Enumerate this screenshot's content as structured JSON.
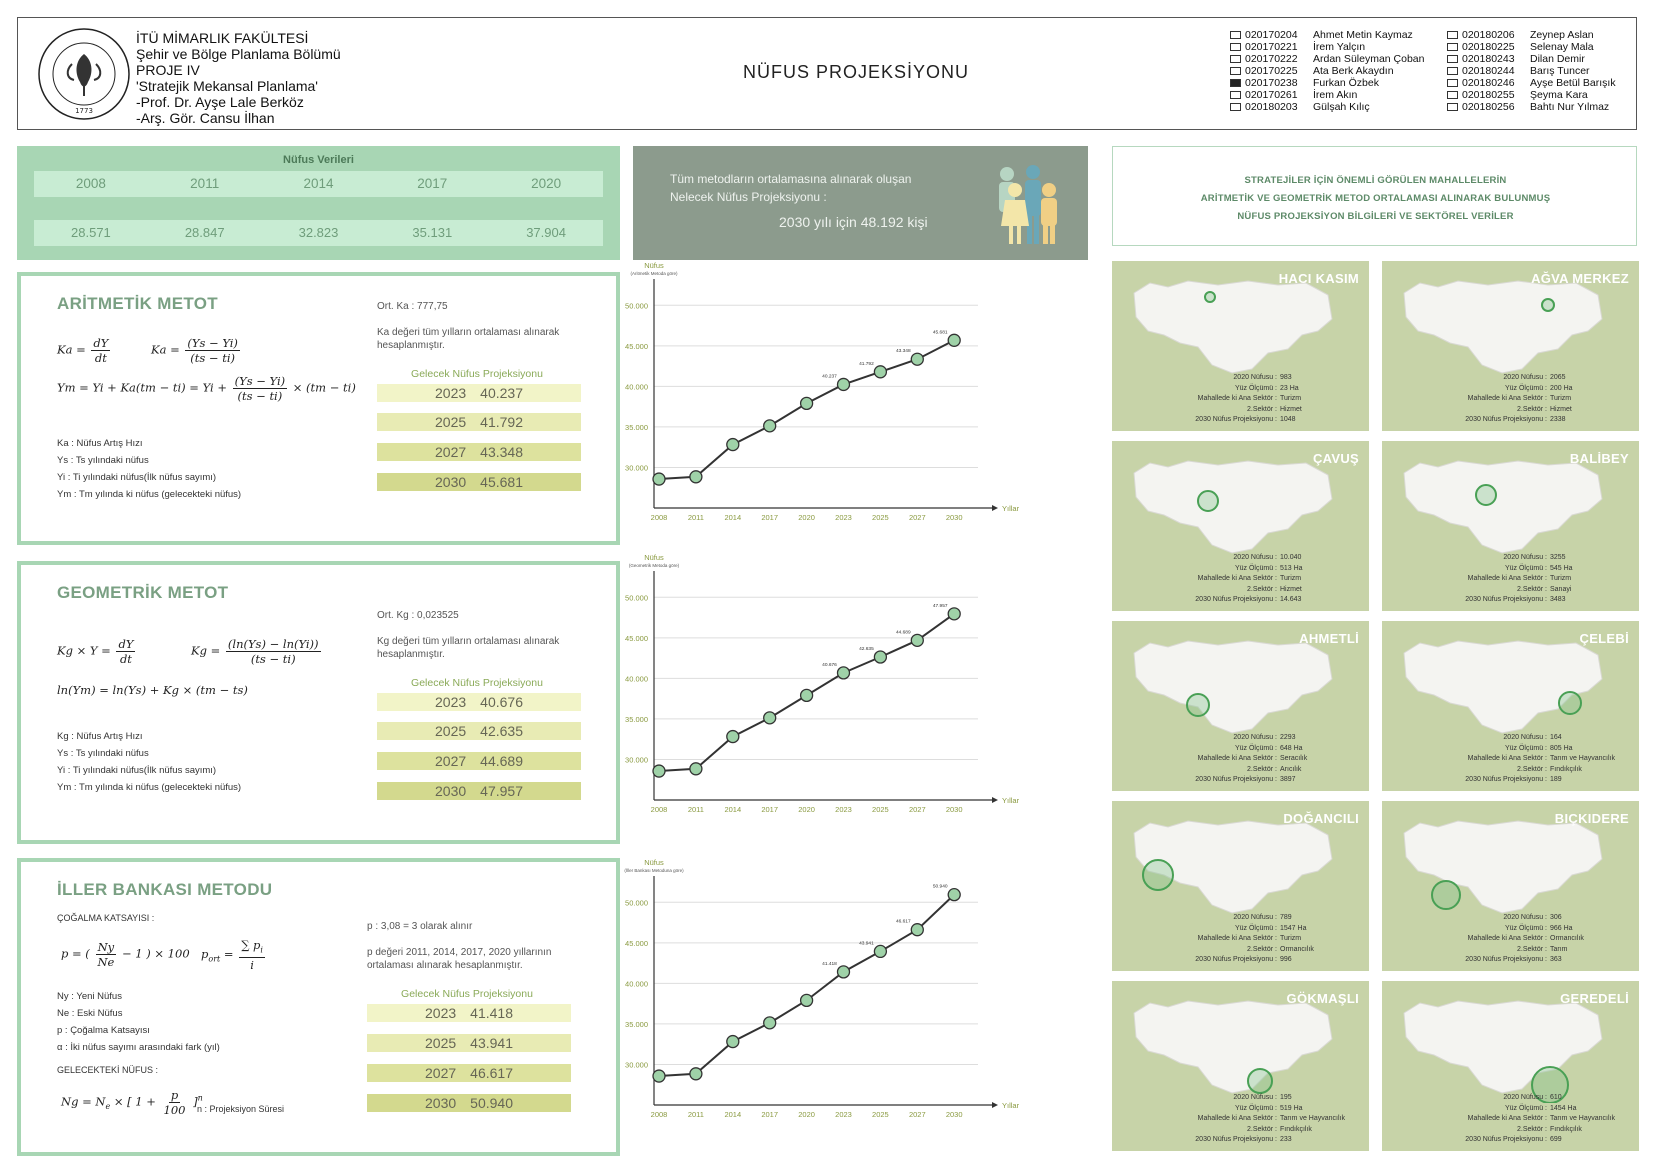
{
  "header": {
    "institution_lines": [
      "İTÜ MİMARLIK FAKÜLTESİ",
      "Şehir ve Bölge Planlama Bölümü",
      "PROJE IV",
      "'Stratejik Mekansal Planlama'",
      "-Prof. Dr. Ayşe Lale Berköz",
      "-Arş. Gör. Cansu İlhan"
    ],
    "seal": {
      "text": "İSTANBUL TEKNİK ÜNİVERSİTESİ",
      "year": "1773"
    },
    "title": "NÜFUS PROJEKSİYONU",
    "students_col1": [
      {
        "id": "020170204",
        "name": "Ahmet Metin Kaymaz",
        "checked": false
      },
      {
        "id": "020170221",
        "name": "İrem Yalçın",
        "checked": false
      },
      {
        "id": "020170222",
        "name": "Ardan Süleyman Çoban",
        "checked": false
      },
      {
        "id": "020170225",
        "name": "Ata Berk Akaydın",
        "checked": false
      },
      {
        "id": "020170238",
        "name": "Furkan Özbek",
        "checked": true
      },
      {
        "id": "020170261",
        "name": "İrem Akın",
        "checked": false
      },
      {
        "id": "020180203",
        "name": "Gülşah Kılıç",
        "checked": false
      }
    ],
    "students_col2": [
      {
        "id": "020180206",
        "name": "Zeynep Aslan",
        "checked": false
      },
      {
        "id": "020180225",
        "name": "Selenay Mala",
        "checked": false
      },
      {
        "id": "020180243",
        "name": "Dilan Demir",
        "checked": false
      },
      {
        "id": "020180244",
        "name": "Barış Tuncer",
        "checked": false
      },
      {
        "id": "020180246",
        "name": "Ayşe Betül Barışık",
        "checked": false
      },
      {
        "id": "020180255",
        "name": "Şeyma Kara",
        "checked": false
      },
      {
        "id": "020180256",
        "name": "Bahtı Nur Yılmaz",
        "checked": false
      }
    ]
  },
  "census": {
    "title": "Nüfus Verileri",
    "years": [
      "2008",
      "2011",
      "2014",
      "2017",
      "2020"
    ],
    "values": [
      "28.571",
      "28.847",
      "32.823",
      "35.131",
      "37.904"
    ]
  },
  "banner": {
    "line1": "Tüm metodların ortalamasına alınarak oluşan",
    "line2": "Nelecek Nüfus Projeksiyonu :",
    "line3": "2030 yılı için 48.192 kişi"
  },
  "strategy": {
    "line1": "STRATEJİLER İÇİN ÖNEMLİ GÖRÜLEN MAHALLELERİN",
    "line2": "ARİTMETİK VE GEOMETRİK METOD ORTALAMASI ALINARAK BULUNMUŞ",
    "line3": "NÜFUS PROJEKSİYON BİLGİLERİ VE SEKTÖREL VERİLER"
  },
  "projection_title": "Gelecek Nüfus Projeksiyonu",
  "arithmetic": {
    "title": "ARİTMETİK METOT",
    "ort": "Ort. Ka : 777,75",
    "note": "Ka değeri tüm yılların ortalaması alınarak hesaplanmıştır.",
    "legend": [
      "Ka : Nüfus Artış Hızı",
      "Ys : Ts yılındaki nüfus",
      "Yi : Ti yılındaki nüfus(İlk nüfus sayımı)",
      "Ym : Tm yılında ki nüfus (gelecekteki nüfus)"
    ],
    "projections": [
      {
        "year": "2023",
        "value": "40.237"
      },
      {
        "year": "2025",
        "value": "41.792"
      },
      {
        "year": "2027",
        "value": "43.348"
      },
      {
        "year": "2030",
        "value": "45.681"
      }
    ]
  },
  "geometric": {
    "title": "GEOMETRİK METOT",
    "ort": "Ort. Kg : 0,023525",
    "note": "Kg değeri tüm yılların ortalaması alınarak hesaplanmıştır.",
    "legend": [
      "Kg : Nüfus Artış Hızı",
      "Ys : Ts yılındaki nüfus",
      "Yi : Ti yılındaki nüfus(İlk nüfus sayımı)",
      "Ym : Tm yılında ki nüfus (gelecekteki nüfus)"
    ],
    "projections": [
      {
        "year": "2023",
        "value": "40.676"
      },
      {
        "year": "2025",
        "value": "42.635"
      },
      {
        "year": "2027",
        "value": "44.689"
      },
      {
        "year": "2030",
        "value": "47.957"
      }
    ]
  },
  "iller": {
    "title": "İLLER BANKASI METODU",
    "subtitle": "ÇOĞALMA KATSAYISI :",
    "p_note": "p : 3,08 = 3 olarak alınır",
    "note": "p değeri 2011, 2014, 2017, 2020 yıllarının ortalaması alınarak hesaplanmıştır.",
    "legend": [
      "Ny : Yeni Nüfus",
      "Ne : Eski Nüfus",
      "p : Çoğalma Katsayısı",
      "α : İki nüfus sayımı arasındaki fark (yıl)"
    ],
    "future_label": "GELECEKTEKİ NÜFUS :",
    "n_label": "n : Projeksiyon Süresi",
    "projections": [
      {
        "year": "2023",
        "value": "41.418"
      },
      {
        "year": "2025",
        "value": "43.941"
      },
      {
        "year": "2027",
        "value": "46.617"
      },
      {
        "year": "2030",
        "value": "50.940"
      }
    ]
  },
  "chart_data": [
    {
      "type": "line",
      "ylabel": "Nüfus",
      "ysub": "(Aritmetik Metoda göre)",
      "xlabel": "Yıllar",
      "x": [
        "2008",
        "2011",
        "2014",
        "2017",
        "2020",
        "2023",
        "2025",
        "2027",
        "2030"
      ],
      "values": [
        28571,
        28847,
        32823,
        35131,
        37904,
        40237,
        41792,
        43348,
        45681
      ],
      "point_labels": [
        "",
        "",
        "",
        "",
        "",
        "40.237",
        "41.792",
        "43.348",
        "45.681"
      ],
      "yticks": [
        "30.000",
        "35.000",
        "40.000",
        "45.000",
        "50.000"
      ],
      "ylim": [
        25000,
        52500
      ]
    },
    {
      "type": "line",
      "ylabel": "Nüfus",
      "ysub": "(Geometrik Metoda göre)",
      "xlabel": "Yıllar",
      "x": [
        "2008",
        "2011",
        "2014",
        "2017",
        "2020",
        "2023",
        "2025",
        "2027",
        "2030"
      ],
      "values": [
        28571,
        28847,
        32823,
        35131,
        37904,
        40676,
        42635,
        44689,
        47957
      ],
      "point_labels": [
        "",
        "",
        "",
        "",
        "",
        "40.676",
        "42.635",
        "44.689",
        "47.957"
      ],
      "yticks": [
        "30.000",
        "35.000",
        "40.000",
        "45.000",
        "50.000"
      ],
      "ylim": [
        25000,
        52500
      ]
    },
    {
      "type": "line",
      "ylabel": "Nüfus",
      "ysub": "(İller Bankası Metoduna göre)",
      "xlabel": "Yıllar",
      "x": [
        "2008",
        "2011",
        "2014",
        "2017",
        "2020",
        "2023",
        "2025",
        "2027",
        "2030"
      ],
      "values": [
        28571,
        28847,
        32823,
        35131,
        37904,
        41418,
        43941,
        46617,
        50940
      ],
      "point_labels": [
        "",
        "",
        "",
        "",
        "",
        "41.418",
        "43.941",
        "46.617",
        "50.940"
      ],
      "yticks": [
        "30.000",
        "35.000",
        "40.000",
        "45.000",
        "50.000"
      ],
      "ylim": [
        25000,
        52500
      ]
    }
  ],
  "stat_labels": [
    "2020 Nüfusu :",
    "Yüz Ölçümü :",
    "Mahallede ki Ana Sektör :",
    "2.Sektör :",
    "2030 Nüfus Projeksiyonu :"
  ],
  "neighborhoods": [
    {
      "name": "HACI KASIM",
      "nufus": "983",
      "alan": "23 Ha",
      "ana": "Turizm",
      "ikinci": "Hizmet",
      "proj": "1048"
    },
    {
      "name": "AĞVA MERKEZ",
      "nufus": "2065",
      "alan": "200 Ha",
      "ana": "Turizm",
      "ikinci": "Hizmet",
      "proj": "2338"
    },
    {
      "name": "ÇAVUŞ",
      "nufus": "10.040",
      "alan": "513 Ha",
      "ana": "Turizm",
      "ikinci": "Hizmet",
      "proj": "14.643"
    },
    {
      "name": "BALİBEY",
      "nufus": "3255",
      "alan": "545 Ha",
      "ana": "Turizm",
      "ikinci": "Sanayi",
      "proj": "3483"
    },
    {
      "name": "AHMETLİ",
      "nufus": "2293",
      "alan": "648 Ha",
      "ana": "Seracılık",
      "ikinci": "Arıcılık",
      "proj": "3897"
    },
    {
      "name": "ÇELEBİ",
      "nufus": "164",
      "alan": "805 Ha",
      "ana": "Tarım ve Hayvancılık",
      "ikinci": "Fındıkçılık",
      "proj": "189"
    },
    {
      "name": "DOĞANCILI",
      "nufus": "789",
      "alan": "1547 Ha",
      "ana": "Turizm",
      "ikinci": "Ormancılık",
      "proj": "996"
    },
    {
      "name": "BIÇKIDERE",
      "nufus": "306",
      "alan": "966 Ha",
      "ana": "Ormancılık",
      "ikinci": "Tarım",
      "proj": "363"
    },
    {
      "name": "GÖKMAŞLI",
      "nufus": "195",
      "alan": "519 Ha",
      "ana": "Tarım ve Hayvancılık",
      "ikinci": "Fındıkçılık",
      "proj": "233"
    },
    {
      "name": "GEREDELİ",
      "nufus": "610",
      "alan": "1454 Ha",
      "ana": "Tarım ve Hayvancılık",
      "ikinci": "Fındıkçılık",
      "proj": "699"
    }
  ],
  "colors": {
    "panel_green": "#a8d6b4",
    "card_olive": "#c7d3a8",
    "banner_gray": "#8c9b8d",
    "point_fill": "#9fd2a8",
    "line_dark": "#333333"
  }
}
